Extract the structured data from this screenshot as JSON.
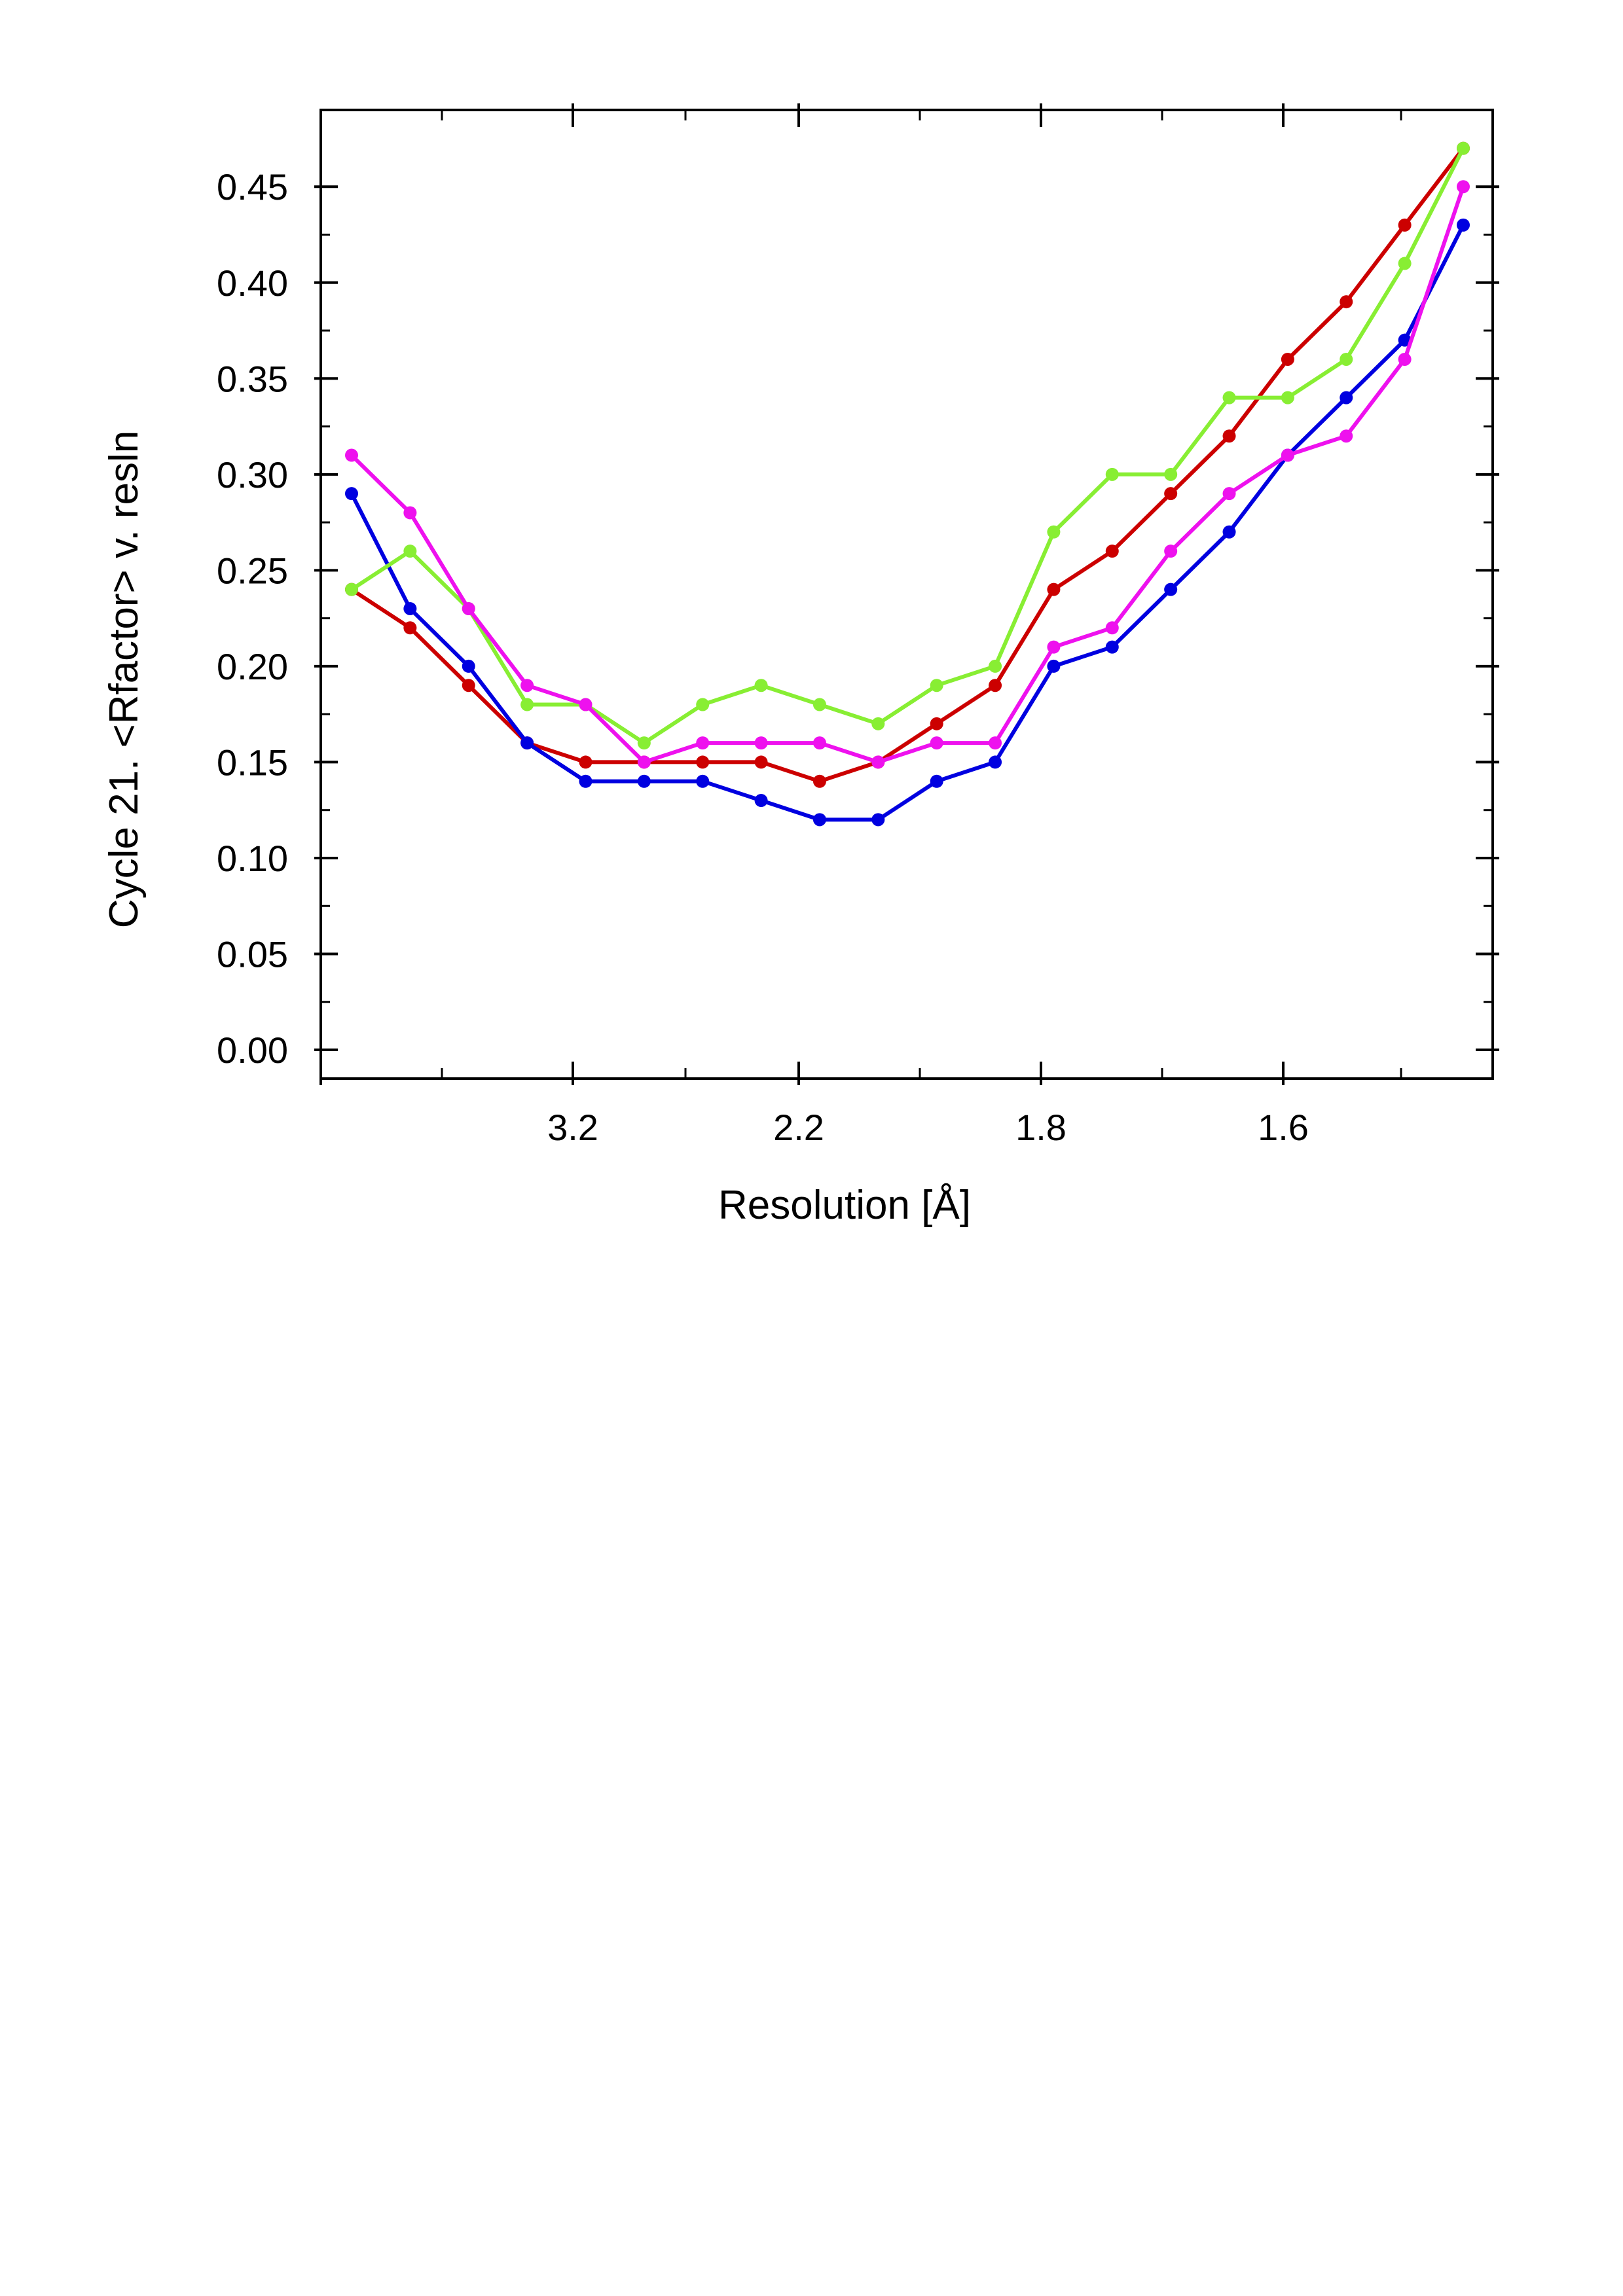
{
  "chart_data": {
    "type": "line",
    "title": "",
    "xlabel": "Resolution [Å]",
    "ylabel": "Cycle 21. <Rfactor> v. resln",
    "x_tick_labels": [
      "3.2",
      "2.2",
      "1.8",
      "1.6"
    ],
    "y_tick_labels": [
      "0.00",
      "0.05",
      "0.10",
      "0.15",
      "0.20",
      "0.25",
      "0.30",
      "0.35",
      "0.40",
      "0.45"
    ],
    "ylim": [
      -0.015,
      0.49
    ],
    "grid": false,
    "legend": "none",
    "points_per_series": 20,
    "series": [
      {
        "color": "#cc0000",
        "values": [
          0.24,
          0.22,
          0.19,
          0.16,
          0.15,
          0.15,
          0.15,
          0.15,
          0.14,
          0.15,
          0.17,
          0.19,
          0.24,
          0.26,
          0.29,
          0.32,
          0.36,
          0.39,
          0.43,
          0.47
        ]
      },
      {
        "color": "#0000e0",
        "values": [
          0.29,
          0.23,
          0.2,
          0.16,
          0.14,
          0.14,
          0.14,
          0.13,
          0.12,
          0.12,
          0.14,
          0.15,
          0.2,
          0.21,
          0.24,
          0.27,
          0.31,
          0.34,
          0.37,
          0.43
        ]
      },
      {
        "color": "#88ee33",
        "values": [
          0.24,
          0.26,
          0.23,
          0.18,
          0.18,
          0.16,
          0.18,
          0.19,
          0.18,
          0.17,
          0.19,
          0.2,
          0.27,
          0.3,
          0.3,
          0.34,
          0.34,
          0.36,
          0.41,
          0.47
        ]
      },
      {
        "color": "#ee11ee",
        "values": [
          0.31,
          0.28,
          0.23,
          0.19,
          0.18,
          0.15,
          0.16,
          0.16,
          0.16,
          0.15,
          0.16,
          0.16,
          0.21,
          0.22,
          0.26,
          0.29,
          0.31,
          0.32,
          0.36,
          0.45
        ]
      }
    ]
  }
}
